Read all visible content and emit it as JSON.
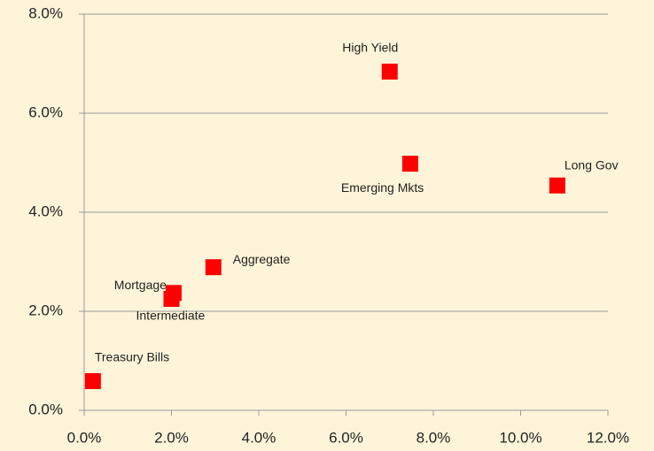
{
  "chart_data": {
    "type": "scatter",
    "labels": [
      "Treasury Bills",
      "Mortgage",
      "Intermediate",
      "Aggregate",
      "High Yield",
      "Emerging Mkts",
      "Long Gov"
    ],
    "x": [
      0.2,
      2.05,
      2.0,
      2.96,
      7.0,
      7.47,
      10.84
    ],
    "values": [
      0.59,
      2.37,
      2.25,
      2.89,
      6.84,
      4.98,
      4.54
    ],
    "color": "#ff0000",
    "xlim": [
      0,
      12
    ],
    "ylim": [
      0,
      8
    ],
    "xticks": [
      {
        "value": 0,
        "label": "0.0%"
      },
      {
        "value": 2,
        "label": "2.0%"
      },
      {
        "value": 4,
        "label": "4.0%"
      },
      {
        "value": 6,
        "label": "6.0%"
      },
      {
        "value": 8,
        "label": "8.0%"
      },
      {
        "value": 10,
        "label": "10.0%"
      },
      {
        "value": 12,
        "label": "12.0%"
      }
    ],
    "yticks": [
      {
        "value": 0,
        "label": "0.0%"
      },
      {
        "value": 2,
        "label": "2.0%"
      },
      {
        "value": 4,
        "label": "4.0%"
      },
      {
        "value": 6,
        "label": "6.0%"
      },
      {
        "value": 8,
        "label": "8.0%"
      }
    ],
    "grid": true
  }
}
